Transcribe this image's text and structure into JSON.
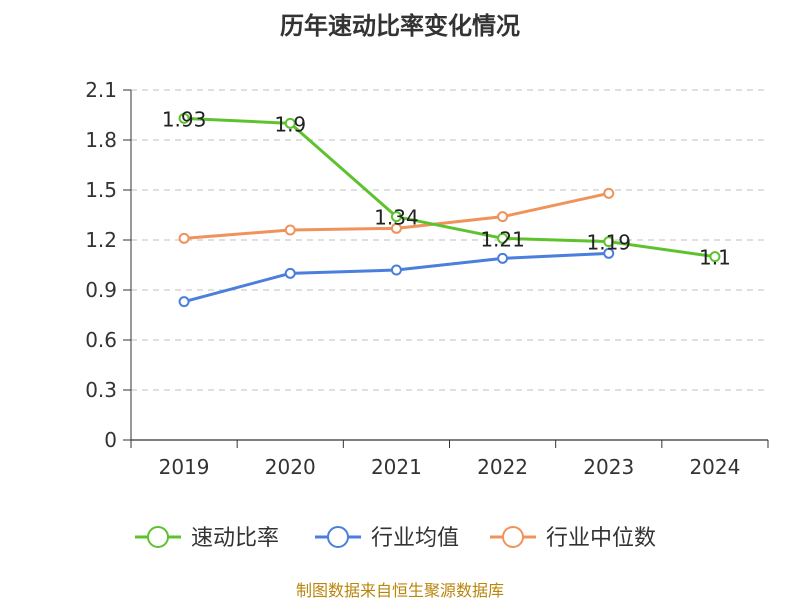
{
  "chart_data": {
    "type": "line",
    "title": "历年速动比率变化情况",
    "categories": [
      "2019",
      "2020",
      "2021",
      "2022",
      "2023",
      "2024"
    ],
    "ylim": [
      0,
      2.1
    ],
    "yticks": [
      "0",
      "0.3",
      "0.6",
      "0.9",
      "1.2",
      "1.5",
      "1.8",
      "2.1"
    ],
    "grid": true,
    "legend_position": "bottom",
    "series": [
      {
        "name": "速动比率",
        "color": "#5ec22f",
        "values": [
          1.93,
          1.9,
          1.34,
          1.21,
          1.19,
          1.1
        ],
        "labels": [
          "1.93",
          "1.9",
          "1.34",
          "1.21",
          "1.19",
          "1.1"
        ]
      },
      {
        "name": "行业均值",
        "color": "#4a7fdc",
        "values": [
          0.83,
          1.0,
          1.02,
          1.09,
          1.12,
          null
        ]
      },
      {
        "name": "行业中位数",
        "color": "#f0935a",
        "values": [
          1.21,
          1.26,
          1.27,
          1.34,
          1.48,
          null
        ]
      }
    ],
    "source": "制图数据来自恒生聚源数据库"
  }
}
